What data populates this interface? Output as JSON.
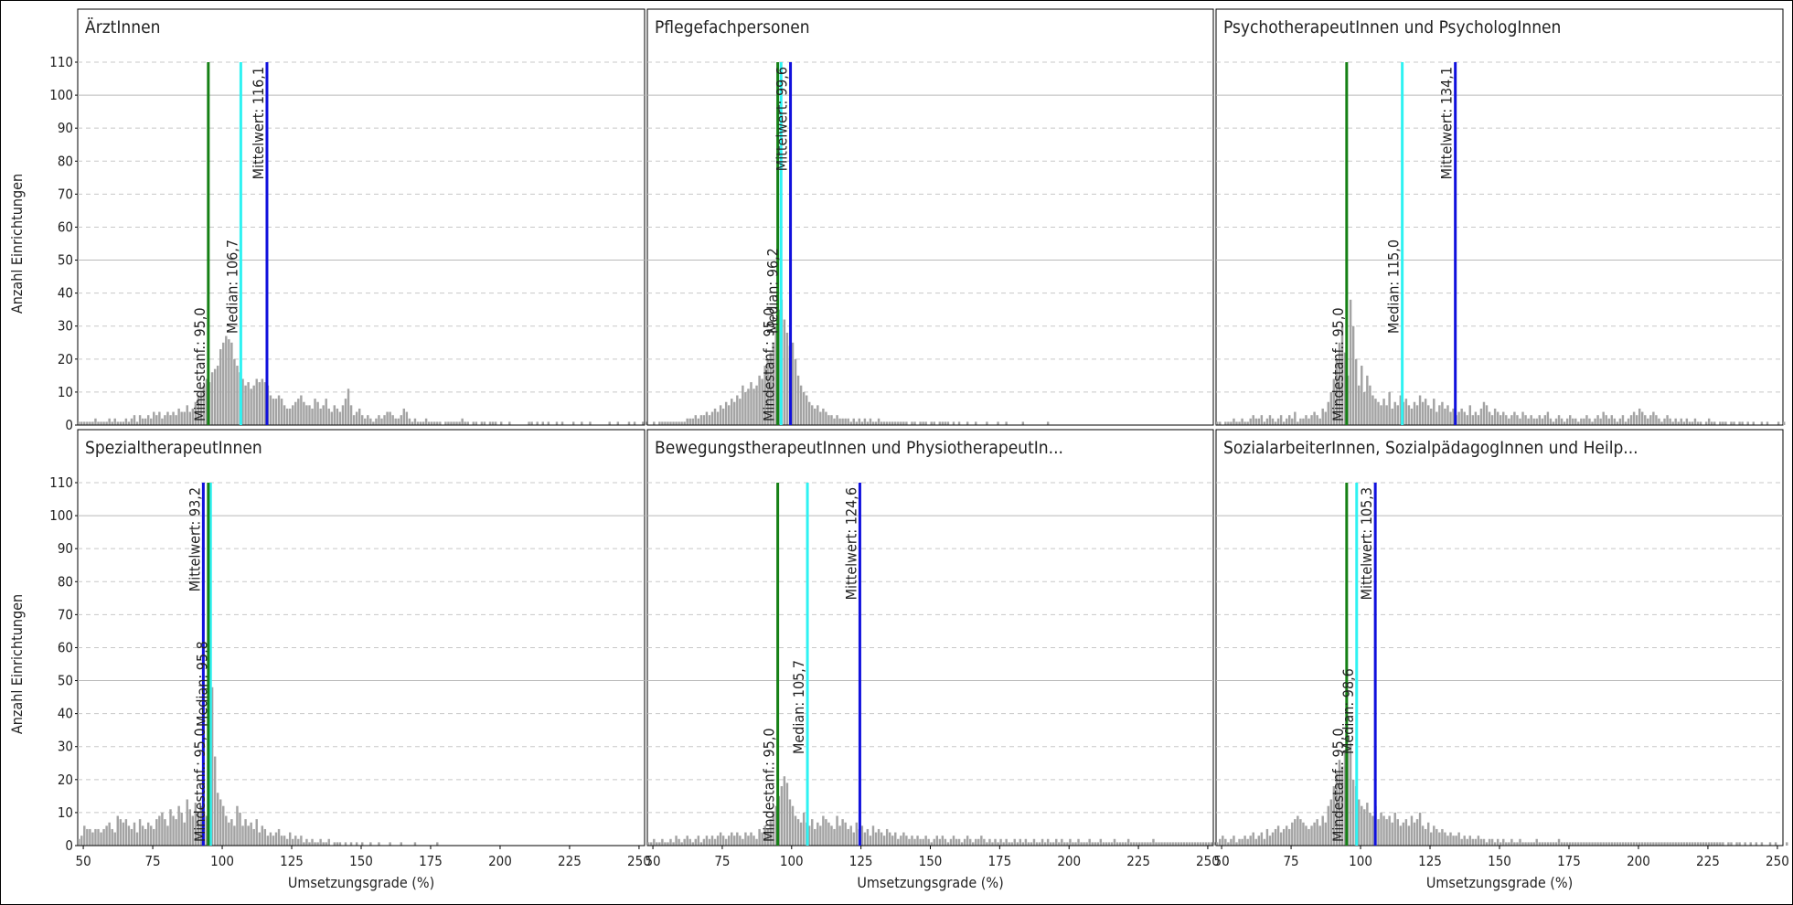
{
  "chart_data": {
    "type": "bar",
    "ylabel": "Anzahl Einrichtungen",
    "xlabel": "Umsetzungsgrade (%)",
    "xlim": [
      48,
      252
    ],
    "ylim": [
      0,
      110
    ],
    "yticks": [
      "0",
      "10",
      "20",
      "30",
      "40",
      "50",
      "60",
      "70",
      "80",
      "90",
      "100",
      "110"
    ],
    "xticks": [
      "50",
      "75",
      "100",
      "125",
      "150",
      "175",
      "200",
      "225",
      "250"
    ],
    "grid": true,
    "bin_width": 1,
    "bar_color": "#a3a3a3",
    "panels": [
      {
        "title": "ÄrztInnen",
        "lines": [
          {
            "label": "Mindestanf.: 95,0",
            "value": 95.0,
            "color": "#158015"
          },
          {
            "label": "Median: 106,7",
            "value": 106.7,
            "color": "#2ff2f2"
          },
          {
            "label": "Mittelwert: 116,1",
            "value": 116.1,
            "color": "#1010dd"
          }
        ],
        "x_start": 48,
        "values": [
          1,
          1,
          1,
          1,
          1,
          1,
          2,
          1,
          1,
          1,
          1,
          2,
          1,
          2,
          1,
          1,
          1,
          2,
          1,
          2,
          3,
          1,
          3,
          2,
          2,
          3,
          2,
          4,
          3,
          4,
          2,
          3,
          4,
          3,
          4,
          3,
          5,
          4,
          4,
          6,
          4,
          5,
          7,
          9,
          10,
          12,
          14,
          13,
          16,
          17,
          18,
          23,
          25,
          27,
          26,
          25,
          20,
          18,
          16,
          14,
          12,
          13,
          11,
          12,
          14,
          13,
          14,
          13,
          12,
          9,
          8,
          8,
          9,
          8,
          6,
          5,
          5,
          6,
          7,
          8,
          9,
          7,
          6,
          6,
          5,
          8,
          7,
          5,
          6,
          8,
          5,
          4,
          6,
          5,
          4,
          6,
          8,
          11,
          6,
          3,
          4,
          5,
          3,
          2,
          3,
          2,
          1,
          2,
          3,
          2,
          3,
          4,
          4,
          3,
          2,
          2,
          3,
          5,
          4,
          2,
          1,
          2,
          1,
          1,
          1,
          2,
          1,
          1,
          1,
          1,
          1,
          0,
          1,
          1,
          1,
          1,
          1,
          1,
          2,
          1,
          1,
          0,
          1,
          1,
          0,
          1,
          1,
          0,
          1,
          1,
          1,
          0,
          1,
          0,
          0,
          1,
          0,
          0,
          0,
          0,
          0,
          0,
          1,
          1,
          0,
          1,
          0,
          1,
          0,
          1,
          0,
          0,
          1,
          0,
          1,
          0,
          0,
          0,
          1,
          0,
          0,
          1,
          0,
          0,
          1,
          0,
          0,
          0,
          0,
          0,
          0,
          1,
          0,
          0,
          1,
          0,
          0,
          0,
          1,
          0,
          1,
          0,
          0,
          1,
          1
        ]
      },
      {
        "title": "Pflegefachpersonen",
        "lines": [
          {
            "label": "Mindestanf.: 95,0",
            "value": 95.0,
            "color": "#158015"
          },
          {
            "label": "Median: 96,2",
            "value": 96.2,
            "color": "#2ff2f2"
          },
          {
            "label": "Mittelwert: 99,6",
            "value": 99.6,
            "color": "#1010dd"
          }
        ],
        "x_start": 48,
        "values": [
          0,
          0,
          1,
          0,
          1,
          1,
          1,
          1,
          1,
          1,
          1,
          1,
          1,
          1,
          2,
          2,
          2,
          3,
          2,
          3,
          3,
          4,
          3,
          4,
          5,
          4,
          6,
          5,
          7,
          6,
          8,
          7,
          9,
          8,
          12,
          10,
          11,
          13,
          11,
          12,
          15,
          14,
          18,
          20,
          22,
          25,
          30,
          35,
          38,
          32,
          28,
          24,
          25,
          20,
          15,
          12,
          10,
          9,
          7,
          6,
          5,
          6,
          4,
          5,
          4,
          3,
          3,
          2,
          3,
          2,
          2,
          2,
          2,
          1,
          2,
          1,
          2,
          1,
          2,
          1,
          2,
          1,
          1,
          2,
          1,
          1,
          1,
          1,
          1,
          1,
          1,
          1,
          1,
          1,
          0,
          1,
          1,
          0,
          1,
          1,
          1,
          0,
          1,
          1,
          0,
          1,
          1,
          1,
          1,
          0,
          1,
          0,
          1,
          0,
          0,
          1,
          0,
          0,
          1,
          0,
          0,
          0,
          1,
          0,
          0,
          0,
          1,
          0,
          0,
          1,
          0,
          0,
          0,
          0,
          0,
          1,
          0,
          0,
          0,
          0,
          0,
          0,
          0,
          0,
          1,
          0,
          0,
          0,
          0,
          0,
          0,
          0,
          0,
          0,
          0,
          0,
          0,
          0,
          0,
          0,
          0,
          0,
          0,
          0,
          0,
          0,
          0,
          0,
          0,
          0,
          0,
          0,
          0,
          0,
          0,
          0,
          0,
          0,
          0,
          0,
          0,
          0,
          0,
          0,
          0,
          0,
          0,
          0,
          0,
          0,
          0,
          0,
          0,
          0,
          0,
          0,
          0,
          0,
          0,
          0,
          0,
          0,
          0,
          0,
          0,
          0,
          0,
          0
        ]
      },
      {
        "title": "PsychotherapeutInnen und PsychologInnen",
        "lines": [
          {
            "label": "Mindestanf.: 95,0",
            "value": 95.0,
            "color": "#158015"
          },
          {
            "label": "Median: 115,0",
            "value": 115.0,
            "color": "#2ff2f2"
          },
          {
            "label": "Mittelwert: 134,1",
            "value": 134.1,
            "color": "#1010dd"
          }
        ],
        "x_start": 48,
        "values": [
          1,
          1,
          0,
          1,
          1,
          1,
          2,
          1,
          1,
          2,
          1,
          1,
          2,
          3,
          2,
          2,
          3,
          1,
          2,
          3,
          2,
          1,
          2,
          3,
          1,
          2,
          3,
          2,
          4,
          1,
          2,
          2,
          3,
          2,
          3,
          4,
          3,
          2,
          5,
          4,
          7,
          10,
          14,
          20,
          25,
          30,
          22,
          15,
          38,
          30,
          20,
          12,
          18,
          10,
          15,
          12,
          9,
          8,
          7,
          6,
          8,
          6,
          10,
          5,
          7,
          6,
          9,
          7,
          8,
          6,
          5,
          7,
          6,
          9,
          7,
          8,
          6,
          5,
          8,
          4,
          6,
          7,
          5,
          6,
          4,
          5,
          3,
          4,
          5,
          4,
          3,
          6,
          3,
          4,
          3,
          5,
          7,
          6,
          4,
          3,
          5,
          4,
          3,
          4,
          3,
          2,
          3,
          4,
          3,
          2,
          4,
          3,
          2,
          3,
          2,
          2,
          3,
          2,
          3,
          4,
          2,
          1,
          2,
          3,
          2,
          1,
          2,
          3,
          2,
          2,
          1,
          2,
          2,
          3,
          2,
          1,
          2,
          3,
          2,
          4,
          3,
          2,
          3,
          2,
          1,
          2,
          3,
          1,
          2,
          3,
          4,
          3,
          5,
          4,
          3,
          2,
          3,
          4,
          3,
          2,
          1,
          2,
          3,
          2,
          1,
          2,
          1,
          2,
          1,
          2,
          1,
          1,
          2,
          1,
          1,
          0,
          1,
          2,
          1,
          1,
          0,
          1,
          1,
          1,
          0,
          1,
          1,
          0,
          1,
          1,
          0,
          1,
          0,
          1,
          0,
          0,
          1,
          0,
          1,
          0,
          0,
          0,
          1,
          0,
          1
        ]
      },
      {
        "title": "SpezialtherapeutInnen",
        "lines": [
          {
            "label": "Mittelwert: 93,2",
            "value": 93.2,
            "color": "#1010dd"
          },
          {
            "label": "Median: 95,8",
            "value": 95.8,
            "color": "#2ff2f2"
          },
          {
            "label": "Mindestanf.: 95,0",
            "value": 95.0,
            "color": "#158015"
          }
        ],
        "x_start": 48,
        "values": [
          2,
          3,
          6,
          5,
          5,
          4,
          5,
          5,
          4,
          5,
          6,
          7,
          5,
          4,
          9,
          8,
          7,
          8,
          6,
          5,
          7,
          4,
          8,
          6,
          5,
          7,
          6,
          5,
          8,
          9,
          10,
          8,
          6,
          11,
          9,
          8,
          12,
          10,
          7,
          14,
          11,
          9,
          13,
          10,
          12,
          10,
          9,
          36,
          48,
          27,
          16,
          14,
          12,
          9,
          7,
          8,
          6,
          12,
          10,
          6,
          8,
          6,
          7,
          5,
          8,
          4,
          6,
          5,
          3,
          4,
          3,
          4,
          5,
          3,
          3,
          2,
          4,
          2,
          3,
          2,
          3,
          1,
          2,
          1,
          2,
          1,
          1,
          2,
          1,
          1,
          2,
          0,
          1,
          1,
          1,
          0,
          1,
          0,
          1,
          0,
          1,
          0,
          1,
          0,
          0,
          1,
          0,
          0,
          1,
          0,
          0,
          0,
          1,
          0,
          0,
          0,
          1,
          0,
          0,
          0,
          0,
          1,
          0,
          0,
          0,
          0,
          0,
          0,
          0,
          1,
          0,
          0,
          0,
          0,
          0,
          0,
          0,
          0,
          0,
          0,
          0,
          0,
          0,
          0,
          0,
          0,
          0,
          0,
          0,
          0,
          0,
          0,
          0,
          0,
          0,
          0,
          0,
          0,
          0,
          0,
          0,
          0,
          0,
          0,
          0,
          0,
          0,
          0,
          0,
          0,
          0,
          0,
          0,
          0,
          0,
          0,
          0,
          0,
          0,
          0,
          0,
          0,
          0,
          0,
          0,
          0,
          0,
          0,
          0,
          0,
          0,
          0,
          0,
          0,
          0,
          0,
          0,
          0,
          0,
          0,
          0,
          0,
          0,
          0,
          0,
          0,
          0,
          0,
          1
        ]
      },
      {
        "title": "BewegungstherapeutInnen und PhysiotherapeutIn...",
        "lines": [
          {
            "label": "Mindestanf.: 95,0",
            "value": 95.0,
            "color": "#158015"
          },
          {
            "label": "Median: 105,7",
            "value": 105.7,
            "color": "#2ff2f2"
          },
          {
            "label": "Mittelwert: 124,6",
            "value": 124.6,
            "color": "#1010dd"
          }
        ],
        "x_start": 48,
        "values": [
          1,
          1,
          2,
          1,
          1,
          2,
          1,
          1,
          2,
          1,
          3,
          2,
          1,
          2,
          3,
          2,
          1,
          2,
          3,
          1,
          2,
          3,
          2,
          3,
          2,
          3,
          4,
          3,
          2,
          3,
          4,
          3,
          4,
          3,
          2,
          4,
          3,
          4,
          3,
          2,
          5,
          4,
          6,
          5,
          8,
          10,
          12,
          15,
          18,
          21,
          19,
          14,
          12,
          9,
          8,
          7,
          10,
          7,
          6,
          8,
          5,
          7,
          6,
          9,
          8,
          7,
          6,
          5,
          9,
          6,
          8,
          7,
          5,
          6,
          4,
          7,
          5,
          6,
          4,
          5,
          3,
          6,
          4,
          5,
          4,
          3,
          5,
          4,
          3,
          4,
          2,
          3,
          4,
          3,
          2,
          3,
          2,
          3,
          2,
          2,
          3,
          2,
          1,
          2,
          3,
          2,
          3,
          2,
          1,
          2,
          3,
          2,
          2,
          1,
          2,
          3,
          2,
          1,
          2,
          2,
          3,
          2,
          1,
          2,
          1,
          2,
          1,
          2,
          1,
          2,
          1,
          1,
          2,
          1,
          2,
          1,
          2,
          1,
          1,
          2,
          1,
          1,
          2,
          1,
          2,
          1,
          1,
          2,
          1,
          2,
          1,
          1,
          2,
          1,
          1,
          2,
          1,
          1,
          1,
          2,
          1,
          1,
          1,
          2,
          1,
          1,
          1,
          1,
          2,
          1,
          1,
          1,
          1,
          2,
          1,
          1,
          1,
          1,
          1,
          1,
          1,
          1,
          2,
          1,
          1,
          1,
          1,
          1,
          1,
          1,
          1,
          1,
          1,
          1,
          1,
          1,
          1,
          1,
          1,
          1,
          1,
          1,
          1,
          1,
          1
        ]
      },
      {
        "title": "SozialarbeiterInnen, SozialpädagogInnen und Heilp...",
        "lines": [
          {
            "label": "Mindestanf.: 95,0",
            "value": 95.0,
            "color": "#158015"
          },
          {
            "label": "Median: 98,6",
            "value": 98.6,
            "color": "#2ff2f2"
          },
          {
            "label": "Mittelwert: 105,3",
            "value": 105.3,
            "color": "#1010dd"
          }
        ],
        "x_start": 48,
        "values": [
          1,
          2,
          3,
          2,
          1,
          2,
          3,
          1,
          2,
          2,
          3,
          2,
          3,
          4,
          2,
          3,
          4,
          2,
          5,
          3,
          4,
          5,
          6,
          4,
          5,
          6,
          5,
          7,
          8,
          9,
          8,
          7,
          6,
          5,
          6,
          7,
          8,
          6,
          9,
          7,
          12,
          14,
          18,
          22,
          26,
          24,
          28,
          30,
          31,
          20,
          18,
          14,
          12,
          11,
          13,
          10,
          9,
          12,
          8,
          10,
          9,
          8,
          9,
          7,
          10,
          8,
          6,
          7,
          8,
          6,
          9,
          7,
          8,
          10,
          6,
          5,
          7,
          4,
          6,
          5,
          4,
          5,
          4,
          3,
          4,
          3,
          3,
          4,
          2,
          3,
          2,
          3,
          2,
          2,
          3,
          2,
          2,
          1,
          2,
          2,
          1,
          2,
          1,
          2,
          1,
          1,
          2,
          1,
          1,
          2,
          1,
          1,
          1,
          1,
          1,
          2,
          1,
          1,
          1,
          1,
          1,
          1,
          1,
          2,
          1,
          1,
          1,
          1,
          1,
          1,
          1,
          1,
          1,
          1,
          1,
          1,
          1,
          1,
          1,
          1,
          1,
          1,
          1,
          1,
          1,
          1,
          1,
          1,
          1,
          1,
          1,
          1,
          1,
          1,
          1,
          1,
          1,
          1,
          1,
          1,
          1,
          1,
          1,
          1,
          1,
          1,
          1,
          1,
          1,
          1,
          1,
          1,
          1,
          1,
          1,
          1,
          1,
          1,
          1,
          1,
          1,
          1,
          1,
          0,
          1,
          1,
          0,
          1,
          1,
          0,
          1,
          0,
          1,
          0,
          1,
          0,
          1,
          0,
          0,
          1,
          0,
          1,
          0,
          0,
          0,
          1
        ]
      }
    ]
  }
}
